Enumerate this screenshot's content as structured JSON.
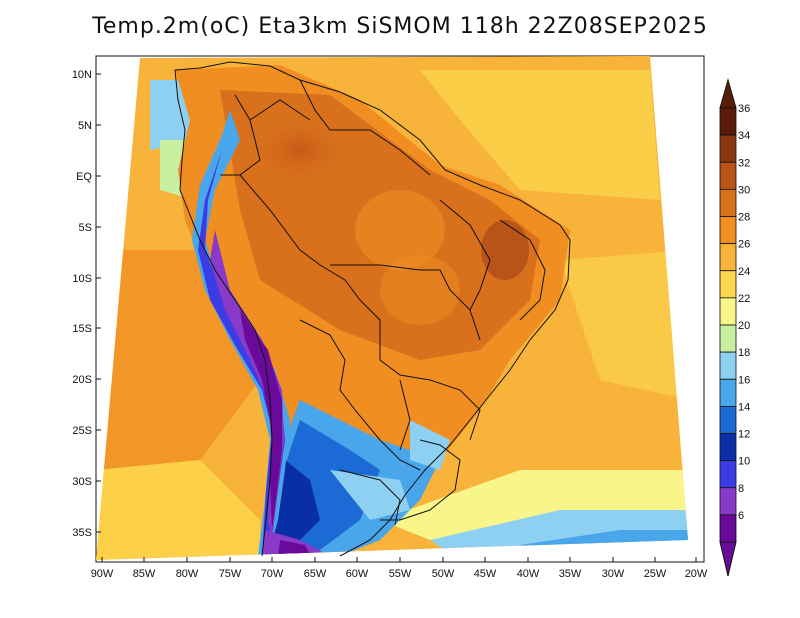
{
  "title": "Temp.2m(oC) Eta3km SiSMOM 118h 22Z08SEP2025",
  "lat_labels": [
    "10N",
    "5N",
    "EQ",
    "5S",
    "10S",
    "15S",
    "20S",
    "25S",
    "30S",
    "35S"
  ],
  "lon_labels": [
    "90W",
    "85W",
    "80W",
    "75W",
    "70W",
    "65W",
    "60W",
    "55W",
    "50W",
    "45W",
    "40W",
    "35W",
    "30W",
    "25W",
    "20W"
  ],
  "colorbar": {
    "labels": [
      "36",
      "34",
      "32",
      "30",
      "28",
      "26",
      "24",
      "22",
      "20",
      "18",
      "16",
      "14",
      "12",
      "10",
      "8",
      "6"
    ],
    "colors": [
      "#5a1c0a",
      "#8a3a12",
      "#b85418",
      "#d8701c",
      "#f08e22",
      "#f8b43a",
      "#fcd84e",
      "#f8f68a",
      "#c8f0a0",
      "#8ed0f2",
      "#4aa6ea",
      "#1c6ad6",
      "#0a2ea6",
      "#3c3ce6",
      "#8a3ac8",
      "#6a0a9a"
    ]
  }
}
